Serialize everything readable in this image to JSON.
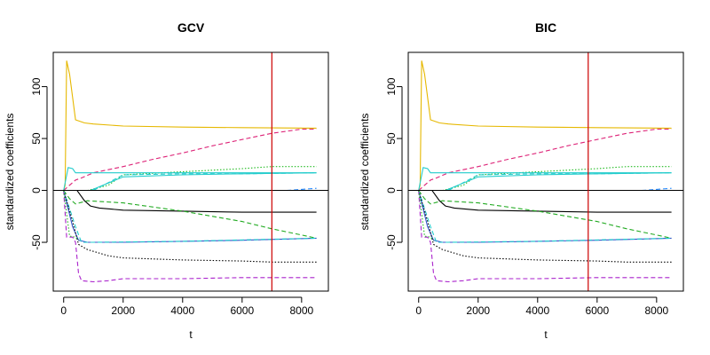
{
  "chart_data": [
    {
      "type": "line",
      "title": "GCV",
      "xlabel": "t",
      "ylabel": "standardized coefficients",
      "xlim": [
        -350,
        8900
      ],
      "ylim": [
        -97,
        133
      ],
      "xticks": [
        0,
        2000,
        4000,
        6000,
        8000
      ],
      "yticks": [
        -50,
        0,
        50,
        100
      ],
      "hline": 0,
      "vline": {
        "x": 7000,
        "color": "#cc0000"
      },
      "series": [
        {
          "color": "#e6b800",
          "dash": "solid",
          "points": [
            [
              0,
              0
            ],
            [
              50,
              5
            ],
            [
              100,
              125
            ],
            [
              200,
              112
            ],
            [
              400,
              68
            ],
            [
              700,
              65
            ],
            [
              1000,
              64
            ],
            [
              2000,
              62
            ],
            [
              4000,
              61
            ],
            [
              6000,
              60.5
            ],
            [
              8500,
              60
            ]
          ]
        },
        {
          "color": "#dd2277",
          "dash": "dashed",
          "points": [
            [
              0,
              0
            ],
            [
              200,
              5
            ],
            [
              400,
              10
            ],
            [
              600,
              12
            ],
            [
              1000,
              17
            ],
            [
              2000,
              23
            ],
            [
              3000,
              30
            ],
            [
              4000,
              36
            ],
            [
              5000,
              43
            ],
            [
              6000,
              49
            ],
            [
              7000,
              55
            ],
            [
              8000,
              59
            ],
            [
              8500,
              59
            ]
          ]
        },
        {
          "color": "#22bb22",
          "dash": "dotted",
          "points": [
            [
              800,
              0
            ],
            [
              1500,
              5
            ],
            [
              2000,
              15
            ],
            [
              4000,
              18
            ],
            [
              6000,
              21
            ],
            [
              7000,
              23
            ],
            [
              8500,
              23
            ]
          ]
        },
        {
          "color": "#22cccc",
          "dash": "solid",
          "points": [
            [
              0,
              0
            ],
            [
              150,
              22
            ],
            [
              300,
              21
            ],
            [
              400,
              17
            ],
            [
              1000,
              17
            ],
            [
              2000,
              17
            ],
            [
              8500,
              17
            ]
          ]
        },
        {
          "color": "#22cccc",
          "dash": "solid",
          "points": [
            [
              900,
              0
            ],
            [
              2000,
              13
            ],
            [
              4000,
              15
            ],
            [
              6000,
              16
            ],
            [
              8500,
              17
            ]
          ]
        },
        {
          "color": "#22cccc",
          "dash": "dashed",
          "points": [
            [
              1000,
              0
            ],
            [
              2000,
              15
            ],
            [
              4000,
              16
            ],
            [
              6000,
              16
            ],
            [
              8500,
              17
            ]
          ]
        },
        {
          "color": "#2288ff",
          "dash": "dashed",
          "points": [
            [
              7500,
              0
            ],
            [
              8000,
              1
            ],
            [
              8500,
              2
            ]
          ]
        },
        {
          "color": "#000000",
          "dash": "solid",
          "points": [
            [
              450,
              0
            ],
            [
              700,
              -10
            ],
            [
              900,
              -15
            ],
            [
              1200,
              -17
            ],
            [
              2000,
              -19
            ],
            [
              4000,
              -20
            ],
            [
              6000,
              -21
            ],
            [
              8500,
              -21
            ]
          ]
        },
        {
          "color": "#22aa22",
          "dash": "dashed",
          "points": [
            [
              0,
              0
            ],
            [
              200,
              -8
            ],
            [
              400,
              -13
            ],
            [
              800,
              -10
            ],
            [
              2000,
              -12
            ],
            [
              4000,
              -20
            ],
            [
              6000,
              -30
            ],
            [
              7000,
              -37
            ],
            [
              8000,
              -43
            ],
            [
              8500,
              -46
            ]
          ]
        },
        {
          "color": "#3355cc",
          "dash": "solid",
          "points": [
            [
              0,
              0
            ],
            [
              300,
              -35
            ],
            [
              500,
              -48
            ],
            [
              800,
              -50
            ],
            [
              2000,
              -50
            ],
            [
              4000,
              -49
            ],
            [
              6000,
              -48
            ],
            [
              8500,
              -46
            ]
          ]
        },
        {
          "color": "#22cccc",
          "dash": "dashed",
          "points": [
            [
              0,
              0
            ],
            [
              400,
              -35
            ],
            [
              600,
              -50
            ],
            [
              1000,
              -50
            ],
            [
              4000,
              -49
            ],
            [
              8500,
              -46
            ]
          ]
        },
        {
          "color": "#000000",
          "dash": "dotted",
          "points": [
            [
              0,
              0
            ],
            [
              300,
              -30
            ],
            [
              500,
              -52
            ],
            [
              800,
              -57
            ],
            [
              1500,
              -63
            ],
            [
              2000,
              -65
            ],
            [
              4000,
              -67
            ],
            [
              6000,
              -68
            ],
            [
              7000,
              -69
            ],
            [
              8500,
              -69
            ]
          ]
        },
        {
          "color": "#aa22cc",
          "dash": "dashed",
          "points": [
            [
              0,
              0
            ],
            [
              100,
              -45
            ],
            [
              300,
              -45
            ],
            [
              400,
              -50
            ],
            [
              500,
              -80
            ],
            [
              600,
              -87
            ],
            [
              1000,
              -88
            ],
            [
              1500,
              -87
            ],
            [
              2000,
              -85
            ],
            [
              4000,
              -85
            ],
            [
              6000,
              -84
            ],
            [
              8500,
              -84
            ]
          ]
        },
        {
          "color": "#22bb22",
          "dash": "dotted",
          "points": [
            [
              0,
              0
            ],
            [
              200,
              -44
            ],
            [
              400,
              -45
            ],
            [
              500,
              -48
            ]
          ]
        }
      ]
    },
    {
      "type": "line",
      "title": "BIC",
      "xlabel": "t",
      "ylabel": "standardized coefficients",
      "xlim": [
        -350,
        8900
      ],
      "ylim": [
        -97,
        133
      ],
      "xticks": [
        0,
        2000,
        4000,
        6000,
        8000
      ],
      "yticks": [
        -50,
        0,
        50,
        100
      ],
      "hline": 0,
      "vline": {
        "x": 5700,
        "color": "#cc0000"
      },
      "series": [
        {
          "color": "#e6b800",
          "dash": "solid",
          "points": [
            [
              0,
              0
            ],
            [
              50,
              5
            ],
            [
              100,
              125
            ],
            [
              200,
              112
            ],
            [
              400,
              68
            ],
            [
              700,
              65
            ],
            [
              1000,
              64
            ],
            [
              2000,
              62
            ],
            [
              4000,
              61
            ],
            [
              6000,
              60.5
            ],
            [
              8500,
              60
            ]
          ]
        },
        {
          "color": "#dd2277",
          "dash": "dashed",
          "points": [
            [
              0,
              0
            ],
            [
              200,
              5
            ],
            [
              400,
              10
            ],
            [
              600,
              12
            ],
            [
              1000,
              17
            ],
            [
              2000,
              23
            ],
            [
              3000,
              30
            ],
            [
              4000,
              36
            ],
            [
              5000,
              43
            ],
            [
              6000,
              49
            ],
            [
              7000,
              55
            ],
            [
              8000,
              59
            ],
            [
              8500,
              59
            ]
          ]
        },
        {
          "color": "#22bb22",
          "dash": "dotted",
          "points": [
            [
              800,
              0
            ],
            [
              1500,
              5
            ],
            [
              2000,
              15
            ],
            [
              4000,
              18
            ],
            [
              6000,
              21
            ],
            [
              7000,
              23
            ],
            [
              8500,
              23
            ]
          ]
        },
        {
          "color": "#22cccc",
          "dash": "solid",
          "points": [
            [
              0,
              0
            ],
            [
              150,
              22
            ],
            [
              300,
              21
            ],
            [
              400,
              17
            ],
            [
              1000,
              17
            ],
            [
              2000,
              17
            ],
            [
              8500,
              17
            ]
          ]
        },
        {
          "color": "#22cccc",
          "dash": "solid",
          "points": [
            [
              900,
              0
            ],
            [
              2000,
              13
            ],
            [
              4000,
              15
            ],
            [
              6000,
              16
            ],
            [
              8500,
              17
            ]
          ]
        },
        {
          "color": "#22cccc",
          "dash": "dashed",
          "points": [
            [
              1000,
              0
            ],
            [
              2000,
              15
            ],
            [
              4000,
              16
            ],
            [
              6000,
              16
            ],
            [
              8500,
              17
            ]
          ]
        },
        {
          "color": "#2288ff",
          "dash": "dashed",
          "points": [
            [
              7500,
              0
            ],
            [
              8000,
              1
            ],
            [
              8500,
              2
            ]
          ]
        },
        {
          "color": "#000000",
          "dash": "solid",
          "points": [
            [
              450,
              0
            ],
            [
              700,
              -10
            ],
            [
              900,
              -15
            ],
            [
              1200,
              -17
            ],
            [
              2000,
              -19
            ],
            [
              4000,
              -20
            ],
            [
              6000,
              -21
            ],
            [
              8500,
              -21
            ]
          ]
        },
        {
          "color": "#22aa22",
          "dash": "dashed",
          "points": [
            [
              0,
              0
            ],
            [
              200,
              -8
            ],
            [
              400,
              -13
            ],
            [
              800,
              -10
            ],
            [
              2000,
              -12
            ],
            [
              4000,
              -20
            ],
            [
              6000,
              -30
            ],
            [
              7000,
              -37
            ],
            [
              8000,
              -43
            ],
            [
              8500,
              -46
            ]
          ]
        },
        {
          "color": "#3355cc",
          "dash": "solid",
          "points": [
            [
              0,
              0
            ],
            [
              300,
              -35
            ],
            [
              500,
              -48
            ],
            [
              800,
              -50
            ],
            [
              2000,
              -50
            ],
            [
              4000,
              -49
            ],
            [
              6000,
              -48
            ],
            [
              8500,
              -46
            ]
          ]
        },
        {
          "color": "#22cccc",
          "dash": "dashed",
          "points": [
            [
              0,
              0
            ],
            [
              400,
              -35
            ],
            [
              600,
              -50
            ],
            [
              1000,
              -50
            ],
            [
              4000,
              -49
            ],
            [
              8500,
              -46
            ]
          ]
        },
        {
          "color": "#000000",
          "dash": "dotted",
          "points": [
            [
              0,
              0
            ],
            [
              300,
              -30
            ],
            [
              500,
              -52
            ],
            [
              800,
              -57
            ],
            [
              1500,
              -63
            ],
            [
              2000,
              -65
            ],
            [
              4000,
              -67
            ],
            [
              6000,
              -68
            ],
            [
              7000,
              -69
            ],
            [
              8500,
              -69
            ]
          ]
        },
        {
          "color": "#aa22cc",
          "dash": "dashed",
          "points": [
            [
              0,
              0
            ],
            [
              100,
              -45
            ],
            [
              300,
              -45
            ],
            [
              400,
              -50
            ],
            [
              500,
              -80
            ],
            [
              600,
              -87
            ],
            [
              1000,
              -88
            ],
            [
              1500,
              -87
            ],
            [
              2000,
              -85
            ],
            [
              4000,
              -85
            ],
            [
              6000,
              -84
            ],
            [
              8500,
              -84
            ]
          ]
        },
        {
          "color": "#22bb22",
          "dash": "dotted",
          "points": [
            [
              0,
              0
            ],
            [
              200,
              -44
            ],
            [
              400,
              -45
            ],
            [
              500,
              -48
            ]
          ]
        }
      ]
    }
  ]
}
